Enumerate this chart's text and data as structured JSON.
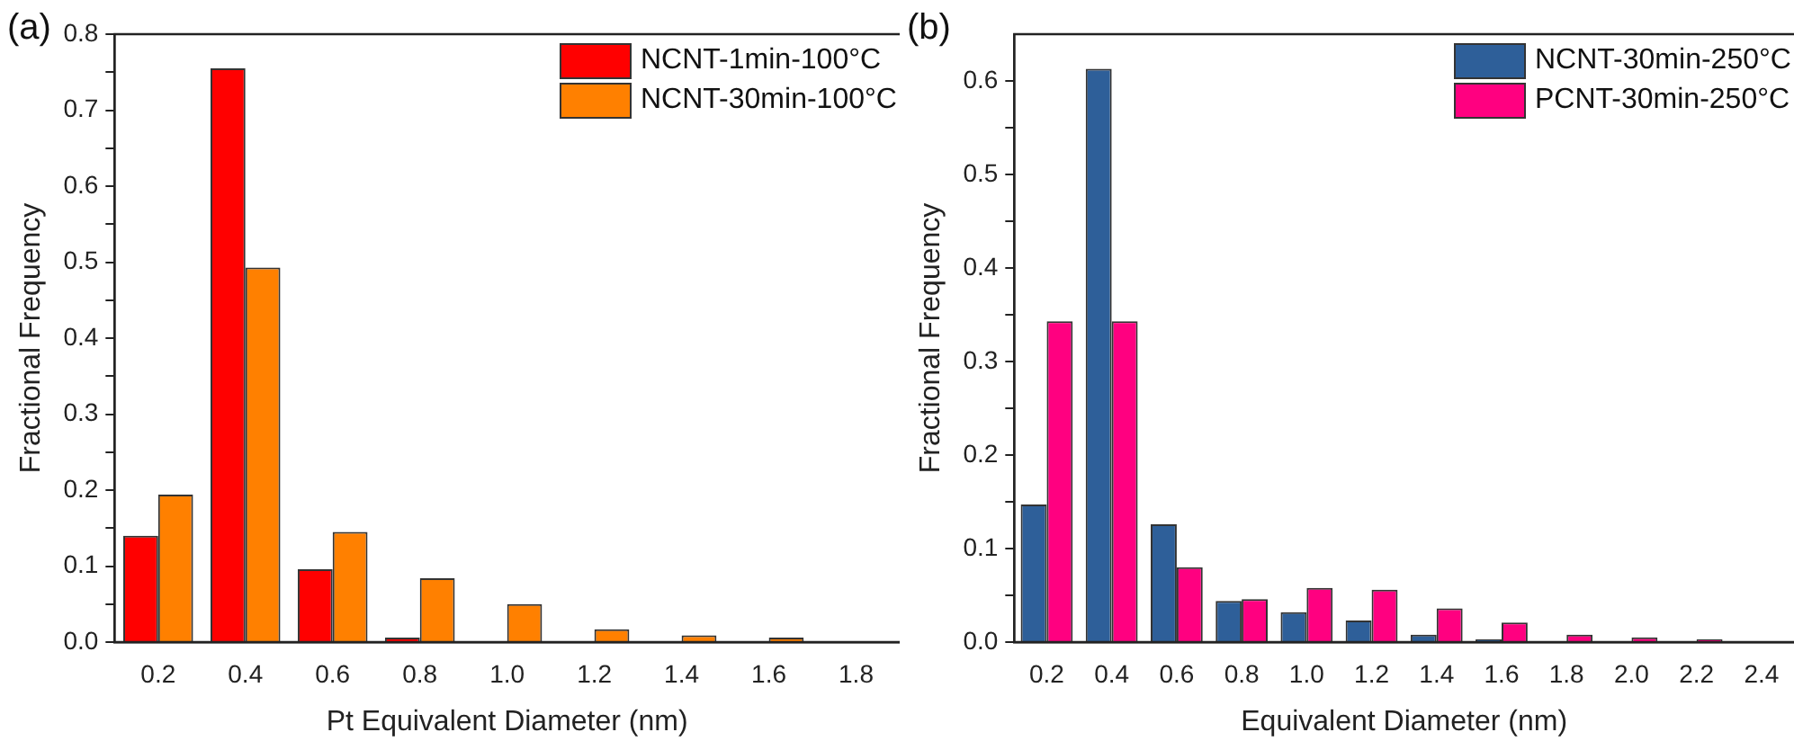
{
  "chart_data": [
    {
      "type": "bar",
      "title": "(a)",
      "xlabel": "Pt Equivalent Diameter (nm)",
      "ylabel": "Fractional Frequency",
      "categories": [
        "0.2",
        "0.4",
        "0.6",
        "0.8",
        "1.0",
        "1.2",
        "1.4",
        "1.6",
        "1.8"
      ],
      "series": [
        {
          "name": "NCNT-1min-100°C",
          "color": "#ff0000",
          "values": [
            0.14,
            0.755,
            0.096,
            0.006,
            0,
            0,
            0,
            0,
            0
          ]
        },
        {
          "name": "NCNT-30min-100°C",
          "color": "#ff8000",
          "values": [
            0.194,
            0.493,
            0.145,
            0.084,
            0.05,
            0.017,
            0.009,
            0.006,
            0
          ]
        }
      ],
      "ylim": [
        0,
        0.8
      ],
      "yticks": [
        {
          "value": 0,
          "label": "0.0"
        },
        {
          "value": 0.05,
          "label": null
        },
        0.1,
        {
          "value": 0.15,
          "label": null
        },
        0.2,
        {
          "value": 0.25,
          "label": null
        },
        0.3,
        {
          "value": 0.35,
          "label": null
        },
        0.4,
        {
          "value": 0.45,
          "label": null
        },
        0.5,
        {
          "value": 0.55,
          "label": null
        },
        0.6,
        {
          "value": 0.65,
          "label": null
        },
        0.7,
        {
          "value": 0.75,
          "label": null
        },
        0.8
      ],
      "grid": false,
      "legend": "top right"
    },
    {
      "type": "bar",
      "title": "(b)",
      "xlabel": "Equivalent Diameter (nm)",
      "ylabel": "Fractional Frequency",
      "categories": [
        "0.2",
        "0.4",
        "0.6",
        "0.8",
        "1.0",
        "1.2",
        "1.4",
        "1.6",
        "1.8",
        "2.0",
        "2.2",
        "2.4"
      ],
      "series": [
        {
          "name": "NCNT-30min-250°C",
          "color": "#2e5f99",
          "values": [
            0.147,
            0.613,
            0.126,
            0.044,
            0.032,
            0.023,
            0.008,
            0.003,
            0.001,
            0.001,
            0,
            0
          ]
        },
        {
          "name": "PCNT-30min-250°C",
          "color": "#ff0080",
          "values": [
            0.343,
            0.343,
            0.08,
            0.046,
            0.058,
            0.056,
            0.036,
            0.021,
            0.008,
            0.005,
            0.003,
            0
          ]
        }
      ],
      "ylim": [
        0,
        0.65
      ],
      "yticks": [
        {
          "value": 0,
          "label": "0.0"
        },
        {
          "value": 0.05,
          "label": null
        },
        0.1,
        {
          "value": 0.15,
          "label": null
        },
        0.2,
        {
          "value": 0.25,
          "label": null
        },
        0.3,
        {
          "value": 0.35,
          "label": null
        },
        0.4,
        {
          "value": 0.45,
          "label": null
        },
        0.5,
        {
          "value": 0.55,
          "label": null
        },
        0.6
      ],
      "grid": false,
      "legend": "top right"
    }
  ]
}
